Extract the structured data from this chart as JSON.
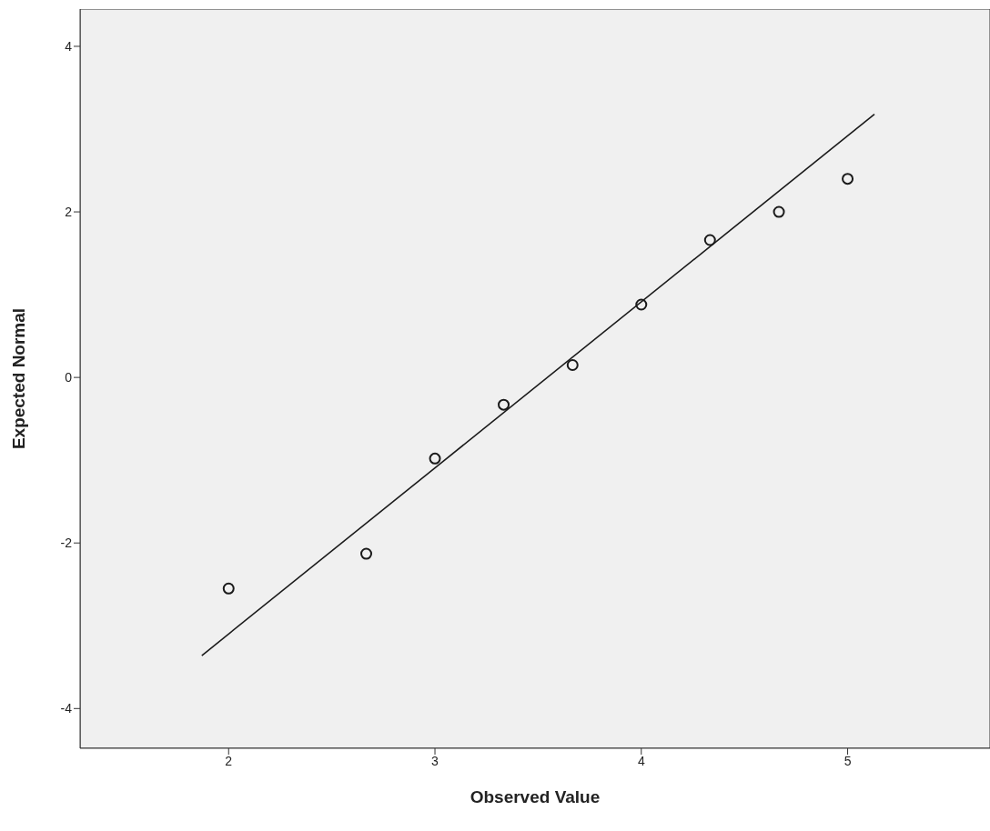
{
  "chart_data": {
    "type": "scatter",
    "xlabel": "Observed Value",
    "ylabel": "Expected Normal",
    "xlim": [
      1.28,
      5.69
    ],
    "ylim": [
      -4.48,
      4.45
    ],
    "xticks": [
      2,
      3,
      4,
      5
    ],
    "yticks": [
      -4,
      -2,
      0,
      2,
      4
    ],
    "marker": "circle",
    "grid": false,
    "legend": false,
    "series": [
      {
        "color": "#1a1a1a",
        "x": [
          2,
          2.667,
          3,
          3.333,
          3.667,
          4,
          4.333,
          4.667,
          5
        ],
        "values": [
          -2.55,
          -2.13,
          -0.98,
          -0.33,
          0.15,
          0.88,
          1.66,
          2.0,
          2.4
        ]
      },
      {
        "type": "line",
        "color": "#1a1a1a",
        "x": [
          1.87,
          5.13
        ],
        "values": [
          -3.36,
          3.18
        ],
        "marker": "none",
        "line_style": "solid"
      }
    ]
  }
}
